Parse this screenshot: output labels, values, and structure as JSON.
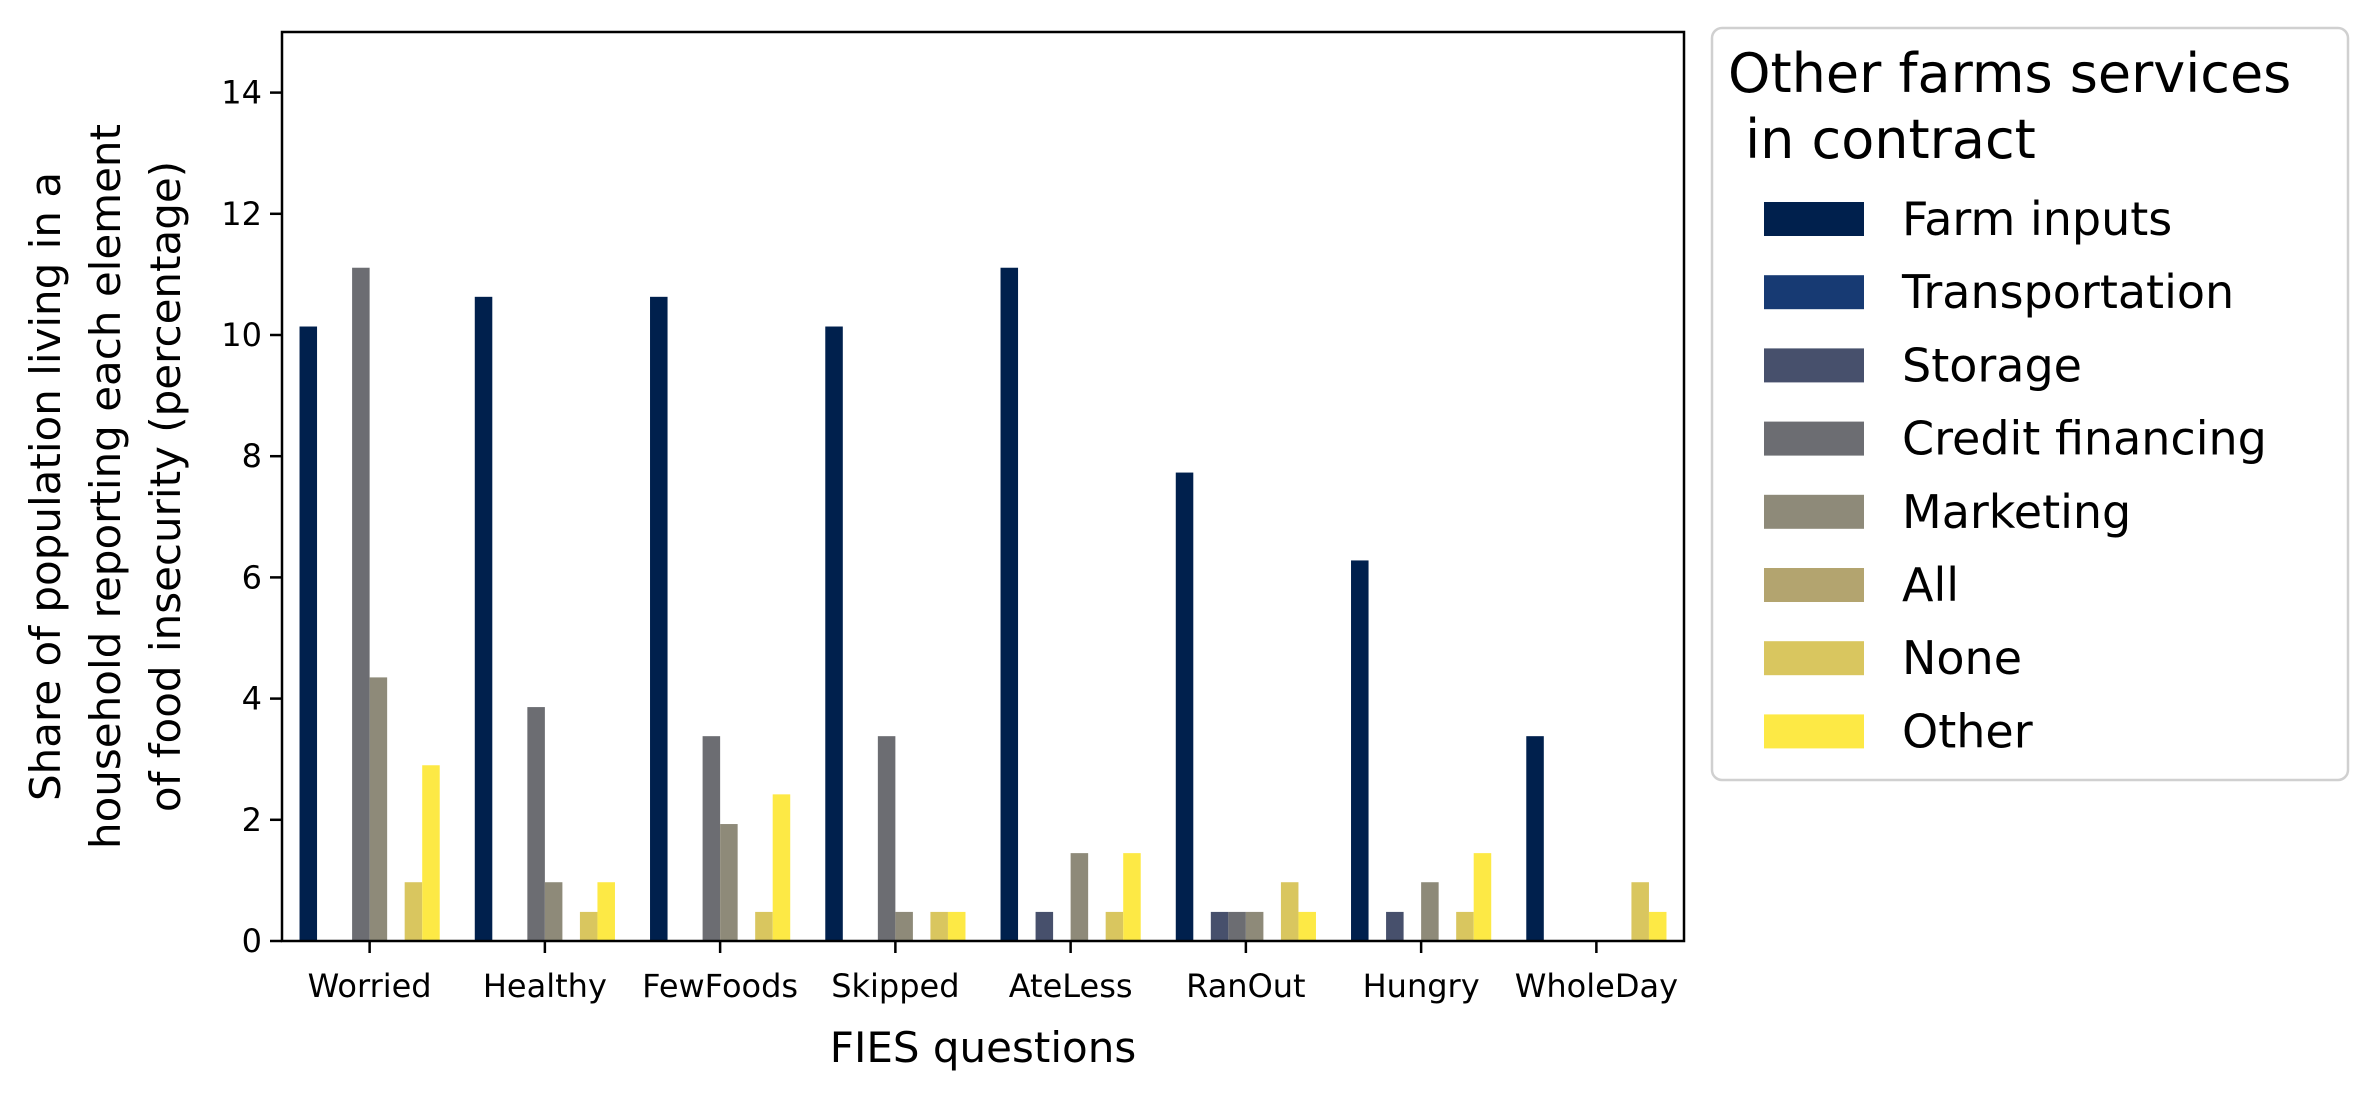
{
  "chart_data": {
    "type": "bar",
    "xlabel": "FIES questions",
    "ylabel_lines": [
      "Share of population living in a",
      "household reporting each element",
      "of food insecurity (percentage)"
    ],
    "ylim": [
      0,
      15
    ],
    "yticks": [
      0,
      2,
      4,
      6,
      8,
      10,
      12,
      14
    ],
    "grid": false,
    "legend_position": "outside-right",
    "legend_title_lines": [
      "Other farms services",
      " in contract"
    ],
    "categories": [
      "Worried",
      "Healthy",
      "FewFoods",
      "Skipped",
      "AteLess",
      "RanOut",
      "Hungry",
      "WholeDay"
    ],
    "series": [
      {
        "name": "Farm inputs",
        "color": "#00204d",
        "values": [
          10.14,
          10.63,
          10.63,
          10.14,
          11.11,
          7.73,
          6.28,
          3.38
        ]
      },
      {
        "name": "Transportation",
        "color": "#173a73",
        "values": [
          0,
          0,
          0,
          0,
          0,
          0,
          0,
          0
        ]
      },
      {
        "name": "Storage",
        "color": "#47506c",
        "values": [
          0,
          0,
          0,
          0,
          0.48,
          0.48,
          0.48,
          0
        ]
      },
      {
        "name": "Credit financing",
        "color": "#6c6d72",
        "values": [
          11.11,
          3.86,
          3.38,
          3.38,
          0,
          0.48,
          0,
          0
        ]
      },
      {
        "name": "Marketing",
        "color": "#8e8a79",
        "values": [
          4.35,
          0.97,
          1.93,
          0.48,
          1.45,
          0.48,
          0.97,
          0
        ]
      },
      {
        "name": "All",
        "color": "#b3a46f",
        "values": [
          0,
          0,
          0,
          0,
          0,
          0,
          0,
          0
        ]
      },
      {
        "name": "None",
        "color": "#d9c65f",
        "values": [
          0.97,
          0.48,
          0.48,
          0.48,
          0.48,
          0.97,
          0.48,
          0.97
        ]
      },
      {
        "name": "Other",
        "color": "#fde945",
        "values": [
          2.9,
          0.97,
          2.42,
          0.48,
          1.45,
          0.48,
          1.45,
          0.48
        ]
      }
    ]
  }
}
